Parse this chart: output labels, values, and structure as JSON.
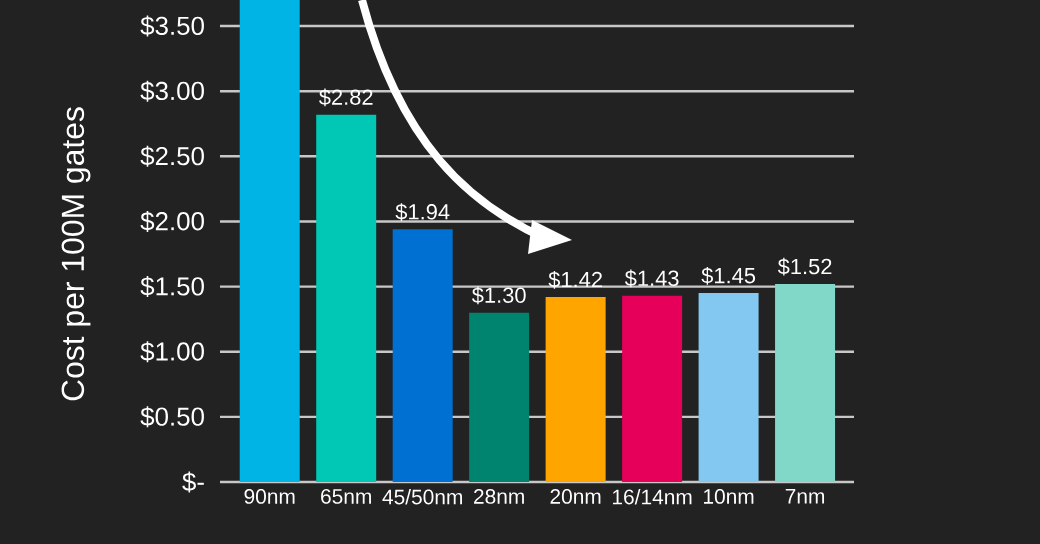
{
  "chart_data": {
    "type": "bar",
    "ylabel": "Cost per 100M gates",
    "categories": [
      "90nm",
      "65nm",
      "45/50nm",
      "28nm",
      "20nm",
      "16/14nm",
      "10nm",
      "7nm"
    ],
    "values": [
      3.7,
      2.82,
      1.94,
      1.3,
      1.42,
      1.43,
      1.45,
      1.52
    ],
    "value_labels": [
      null,
      "$2.82",
      "$1.94",
      "$1.30",
      "$1.42",
      "$1.43",
      "$1.45",
      "$1.52"
    ],
    "colors": [
      "#00b4e6",
      "#00c8b4",
      "#0070d2",
      "#008470",
      "#ffa500",
      "#e6005a",
      "#82c8f0",
      "#82d8c8"
    ],
    "ylim": [
      0,
      3.7
    ],
    "yticks": [
      {
        "value": 0,
        "label": "$-"
      },
      {
        "value": 0.5,
        "label": "$0.50"
      },
      {
        "value": 1,
        "label": "$1.00"
      },
      {
        "value": 1.5,
        "label": "$1.50"
      },
      {
        "value": 2,
        "label": "$2.00"
      },
      {
        "value": 2.5,
        "label": "$2.50"
      },
      {
        "value": 3,
        "label": "$3.00"
      },
      {
        "value": 3.5,
        "label": "$3.50"
      }
    ],
    "grid": "y"
  }
}
